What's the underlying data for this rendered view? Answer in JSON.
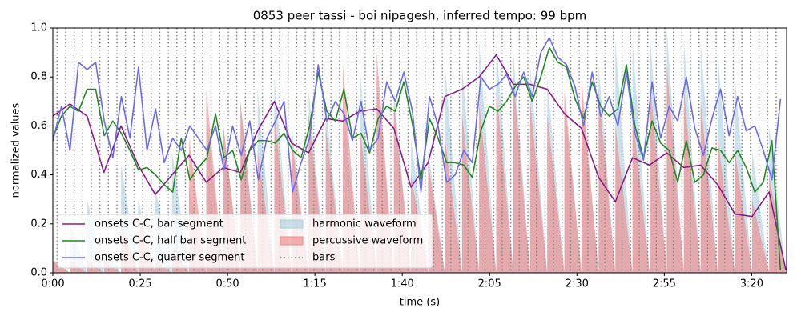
{
  "chart_data": {
    "type": "line",
    "title": "0853 peer tassi - boi nipagesh, inferred tempo: 99 bpm",
    "xlabel": "time (s)",
    "ylabel": "normalized values",
    "xlim": [
      0,
      210
    ],
    "ylim": [
      0,
      1
    ],
    "xticks": [
      {
        "value": 0,
        "label": "0:00"
      },
      {
        "value": 25,
        "label": "0:25"
      },
      {
        "value": 50,
        "label": "0:50"
      },
      {
        "value": 75,
        "label": "1:15"
      },
      {
        "value": 100,
        "label": "1:40"
      },
      {
        "value": 125,
        "label": "2:05"
      },
      {
        "value": 150,
        "label": "2:30"
      },
      {
        "value": 175,
        "label": "2:55"
      },
      {
        "value": 200,
        "label": "3:20"
      }
    ],
    "yticks": [
      {
        "value": 0,
        "label": "0.0"
      },
      0.2,
      0.4,
      0.6,
      0.8,
      {
        "value": 1,
        "label": "1.0"
      }
    ],
    "legend": "lower left",
    "series": [
      {
        "name": "onsets C-C, bar segment",
        "style": "line",
        "color": "#8b1a8b",
        "x": [
          0,
          4.9,
          9.8,
          14.6,
          19.5,
          24.4,
          29.3,
          34.1,
          39,
          43.9,
          48.8,
          53.7,
          58.6,
          63.4,
          68.3,
          73.2,
          78.1,
          83,
          87.8,
          92.7,
          97.6,
          102.5,
          107.4,
          112.2,
          117.1,
          122,
          126.9,
          131.8,
          136.6,
          141.5,
          146.4,
          151.3,
          156.2,
          161,
          165.9,
          170.8,
          175.7,
          180.6,
          185.4,
          190.3,
          195.2,
          200.1,
          205,
          209.8
        ],
        "values": [
          0.64,
          0.69,
          0.64,
          0.41,
          0.6,
          0.44,
          0.32,
          0.4,
          0.48,
          0.37,
          0.43,
          0.41,
          0.58,
          0.7,
          0.53,
          0.49,
          0.63,
          0.62,
          0.66,
          0.67,
          0.59,
          0.35,
          0.45,
          0.72,
          0.75,
          0.8,
          0.89,
          0.77,
          0.77,
          0.75,
          0.65,
          0.59,
          0.39,
          0.29,
          0.47,
          0.44,
          0.49,
          0.43,
          0.44,
          0.36,
          0.24,
          0.23,
          0.33,
          0.01
        ]
      },
      {
        "name": "onsets C-C, half bar segment",
        "style": "line",
        "color": "#1f8a1f",
        "x": [
          0,
          2.45,
          4.9,
          7.35,
          9.8,
          12.25,
          14.7,
          17.15,
          19.6,
          22.05,
          24.5,
          26.95,
          29.4,
          31.85,
          34.3,
          36.75,
          39.2,
          41.65,
          44.1,
          46.55,
          49,
          51.45,
          53.9,
          56.35,
          58.8,
          61.25,
          63.7,
          66.15,
          68.6,
          71.05,
          73.5,
          75.95,
          78.4,
          80.85,
          83.3,
          85.75,
          88.2,
          90.65,
          93.1,
          95.55,
          98,
          100.45,
          102.9,
          105.35,
          107.8,
          110.25,
          112.7,
          115.15,
          117.6,
          120.05,
          122.5,
          124.95,
          127.4,
          129.85,
          132.3,
          134.75,
          137.2,
          139.65,
          142.1,
          144.55,
          147,
          149.45,
          151.9,
          154.35,
          156.8,
          159.25,
          161.7,
          164.15,
          166.6,
          169.05,
          171.5,
          173.95,
          176.4,
          178.85,
          181.3,
          183.75,
          186.2,
          188.65,
          191.1,
          193.55,
          196,
          198.45,
          200.9,
          203.35,
          205.8,
          208.25
        ],
        "values": [
          0.55,
          0.64,
          0.68,
          0.66,
          0.75,
          0.75,
          0.56,
          0.62,
          0.57,
          0.5,
          0.42,
          0.43,
          0.4,
          0.36,
          0.33,
          0.55,
          0.38,
          0.43,
          0.47,
          0.65,
          0.47,
          0.5,
          0.38,
          0.5,
          0.54,
          0.54,
          0.53,
          0.57,
          0.5,
          0.47,
          0.6,
          0.82,
          0.66,
          0.62,
          0.75,
          0.55,
          0.57,
          0.49,
          0.63,
          0.68,
          0.66,
          0.78,
          0.61,
          0.38,
          0.63,
          0.55,
          0.45,
          0.45,
          0.44,
          0.39,
          0.58,
          0.68,
          0.66,
          0.7,
          0.76,
          0.8,
          0.7,
          0.8,
          0.92,
          0.86,
          0.84,
          0.71,
          0.63,
          0.78,
          0.68,
          0.64,
          0.67,
          0.85,
          0.6,
          0.47,
          0.62,
          0.53,
          0.5,
          0.37,
          0.54,
          0.37,
          0.4,
          0.51,
          0.5,
          0.45,
          0.5,
          0.43,
          0.33,
          0.37,
          0.54,
          0.01
        ]
      },
      {
        "name": "onsets C-C, quarter segment",
        "style": "line",
        "color": "#6b6bf0",
        "x": [
          0,
          2.45,
          4.9,
          7.35,
          9.8,
          12.25,
          14.7,
          17.15,
          19.6,
          22.05,
          24.5,
          26.95,
          29.4,
          31.85,
          34.3,
          36.75,
          39.2,
          41.65,
          44.1,
          46.55,
          49,
          51.45,
          53.9,
          56.35,
          58.8,
          61.25,
          63.7,
          66.15,
          68.6,
          71.05,
          73.5,
          75.95,
          78.4,
          80.85,
          83.3,
          85.75,
          88.2,
          90.65,
          93.1,
          95.55,
          98,
          100.45,
          102.9,
          105.35,
          107.8,
          110.25,
          112.7,
          115.15,
          117.6,
          120.05,
          122.5,
          124.95,
          127.4,
          129.85,
          132.3,
          134.75,
          137.2,
          139.65,
          142.1,
          144.55,
          147,
          149.45,
          151.9,
          154.35,
          156.8,
          159.25,
          161.7,
          164.15,
          166.6,
          169.05,
          171.5,
          173.95,
          176.4,
          178.85,
          181.3,
          183.75,
          186.2,
          188.65,
          191.1,
          193.55,
          196,
          198.45,
          200.9,
          203.35,
          205.8,
          208.25
        ],
        "values": [
          0.54,
          0.68,
          0.5,
          0.86,
          0.83,
          0.86,
          0.62,
          0.47,
          0.72,
          0.55,
          0.84,
          0.5,
          0.67,
          0.45,
          0.55,
          0.5,
          0.6,
          0.55,
          0.5,
          0.6,
          0.42,
          0.6,
          0.48,
          0.62,
          0.38,
          0.55,
          0.62,
          0.7,
          0.33,
          0.45,
          0.55,
          0.85,
          0.62,
          0.7,
          0.65,
          0.54,
          0.7,
          0.5,
          0.55,
          0.78,
          0.7,
          0.82,
          0.66,
          0.33,
          0.72,
          0.6,
          0.37,
          0.4,
          0.5,
          0.45,
          0.8,
          0.75,
          0.77,
          0.81,
          0.72,
          0.82,
          0.72,
          0.9,
          0.96,
          0.88,
          0.85,
          0.76,
          0.6,
          0.82,
          0.64,
          0.72,
          0.6,
          0.82,
          0.57,
          0.46,
          0.78,
          0.55,
          0.68,
          0.62,
          0.8,
          0.59,
          0.48,
          0.63,
          0.75,
          0.56,
          0.72,
          0.58,
          0.6,
          0.5,
          0.38,
          0.71
        ]
      },
      {
        "name": "harmonic waveform",
        "style": "area",
        "color": "#a9cfe0",
        "x": [
          0,
          4.9,
          9.8,
          14.6,
          19.5,
          24.4,
          29.3,
          34.1,
          39,
          43.9,
          48.8,
          53.7,
          58.6,
          63.4,
          68.3,
          73.2,
          78.1,
          83,
          87.8,
          92.7,
          97.6,
          102.5,
          107.4,
          112.2,
          117.1,
          122,
          126.9,
          131.8,
          136.6,
          141.5,
          146.4,
          151.3,
          156.2,
          161,
          165.9,
          170.8,
          175.7,
          180.6,
          185.4,
          190.3,
          195.2,
          200.1,
          205,
          209.8
        ],
        "values": [
          0.05,
          0.2,
          0.3,
          0.1,
          0.45,
          0.3,
          0.35,
          0.5,
          0.35,
          0.65,
          0.6,
          0.7,
          0.75,
          0.8,
          0.6,
          0.75,
          0.7,
          0.7,
          0.85,
          0.8,
          0.75,
          0.55,
          0.5,
          0.85,
          0.85,
          0.95,
          0.95,
          0.9,
          0.85,
          0.8,
          0.7,
          0.75,
          0.85,
          0.95,
          0.95,
          1.0,
          1.0,
          0.95,
          0.95,
          0.9,
          0.8,
          0.5,
          0.6,
          0.05
        ]
      },
      {
        "name": "percussive waveform",
        "style": "area",
        "color": "#f08a8a",
        "x": [
          0,
          4.9,
          9.8,
          14.6,
          19.5,
          24.4,
          29.3,
          34.1,
          39,
          43.9,
          48.8,
          53.7,
          58.6,
          63.4,
          68.3,
          73.2,
          78.1,
          83,
          87.8,
          92.7,
          97.6,
          102.5,
          107.4,
          112.2,
          117.1,
          122,
          126.9,
          131.8,
          136.6,
          141.5,
          146.4,
          151.3,
          156.2,
          161,
          165.9,
          170.8,
          175.7,
          180.6,
          185.4,
          190.3,
          195.2,
          200.1,
          205,
          209.8
        ],
        "values": [
          0.05,
          0.05,
          0.05,
          0.05,
          0.2,
          0.25,
          0.05,
          0.1,
          0.55,
          0.75,
          0.6,
          0.7,
          0.5,
          0.65,
          0.55,
          0.65,
          0.6,
          0.85,
          0.6,
          0.9,
          0.7,
          0.4,
          0.45,
          0.55,
          0.65,
          0.7,
          0.75,
          0.8,
          0.7,
          0.65,
          0.75,
          0.8,
          0.75,
          0.6,
          0.65,
          0.8,
          0.85,
          0.75,
          0.7,
          0.55,
          0.5,
          0.3,
          0.4,
          0.05
        ]
      },
      {
        "name": "bars",
        "style": "vlines",
        "color": "#808080",
        "x": [
          1.2,
          3.65,
          6.1,
          8.55,
          11,
          13.45,
          15.9,
          18.35,
          20.8,
          23.25,
          25.7,
          28.15,
          30.6,
          33.05,
          35.5,
          37.95,
          40.4,
          42.85,
          45.3,
          47.75,
          50.2,
          52.65,
          55.1,
          57.55,
          60,
          62.45,
          64.9,
          67.35,
          69.8,
          72.25,
          74.7,
          77.15,
          79.6,
          82.05,
          84.5,
          86.95,
          89.4,
          91.85,
          94.3,
          96.75,
          99.2,
          101.65,
          104.1,
          106.55,
          109,
          111.45,
          113.9,
          116.35,
          118.8,
          121.25,
          123.7,
          126.15,
          128.6,
          131.05,
          133.5,
          135.95,
          138.4,
          140.85,
          143.3,
          145.75,
          148.2,
          150.65,
          153.1,
          155.55,
          158,
          160.45,
          162.9,
          165.35,
          167.8,
          170.25,
          172.7,
          175.15,
          177.6,
          180.05,
          182.5,
          184.95,
          187.4,
          189.85,
          192.3,
          194.75,
          197.2,
          199.65,
          202.1,
          204.55,
          207
        ]
      }
    ]
  }
}
